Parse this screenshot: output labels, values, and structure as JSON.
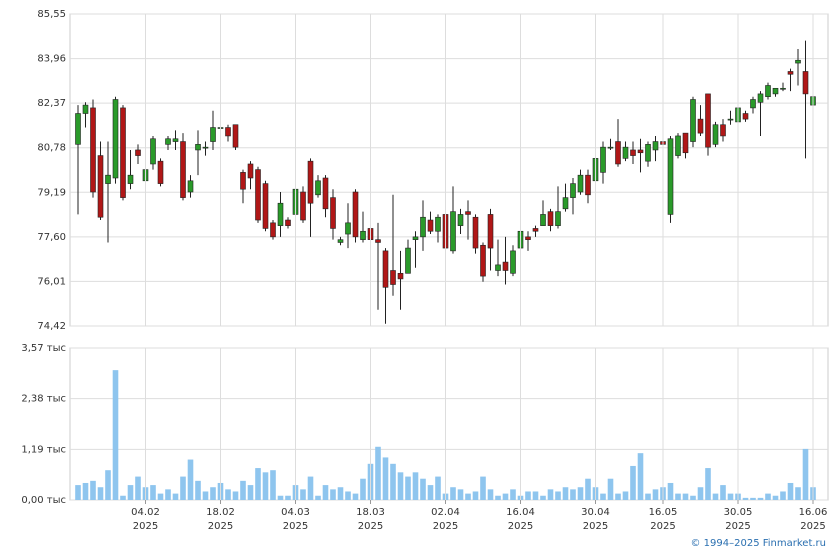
{
  "chart_data": [
    {
      "type": "candlestick",
      "up_color": "#2a9a2a",
      "down_color": "#b01717",
      "ylim": [
        74.42,
        85.55
      ],
      "yticks": [
        {
          "value": 74.42,
          "label": "74,42"
        },
        {
          "value": 76.01,
          "label": "76,01"
        },
        {
          "value": 77.6,
          "label": "77,60"
        },
        {
          "value": 79.19,
          "label": "79,19"
        },
        {
          "value": 80.78,
          "label": "80,78"
        },
        {
          "value": 82.37,
          "label": "82,37"
        },
        {
          "value": 83.96,
          "label": "83,96"
        },
        {
          "value": 85.55,
          "label": "85,55"
        }
      ],
      "grid": true,
      "open": [
        80.9,
        82.0,
        82.2,
        80.5,
        79.5,
        79.7,
        82.2,
        79.5,
        80.7,
        79.6,
        80.2,
        80.3,
        80.9,
        81.0,
        81.0,
        79.2,
        80.7,
        80.8,
        81.0,
        81.5,
        81.5,
        81.6,
        79.9,
        80.2,
        80.0,
        79.5,
        78.1,
        78.0,
        78.2,
        78.4,
        79.2,
        80.3,
        79.1,
        79.7,
        79.0,
        77.4,
        77.7,
        79.2,
        77.5,
        77.9,
        77.5,
        77.1,
        76.4,
        76.3,
        76.3,
        77.5,
        77.6,
        78.2,
        77.8,
        78.4,
        77.1,
        78.0,
        78.5,
        78.3,
        77.3,
        78.4,
        76.4,
        76.7,
        76.3,
        77.2,
        77.6,
        77.9,
        78.0,
        78.5,
        78.0,
        78.6,
        79.0,
        79.2,
        79.8,
        79.6,
        79.9,
        80.8,
        81.0,
        80.4,
        80.7,
        80.7,
        80.3,
        80.7,
        81.0,
        78.4,
        80.5,
        81.3,
        81.0,
        81.8,
        82.7,
        80.9,
        81.6,
        81.8,
        81.7,
        82.0,
        82.2,
        82.4,
        82.6,
        82.7,
        82.9,
        83.5,
        83.8,
        83.5,
        82.3
      ],
      "high": [
        82.3,
        82.4,
        82.5,
        81.0,
        81.0,
        82.6,
        82.3,
        80.7,
        80.9,
        80.2,
        81.2,
        80.4,
        81.2,
        81.4,
        81.3,
        79.8,
        81.4,
        81.0,
        82.1,
        82.3,
        81.6,
        81.6,
        80.0,
        80.3,
        80.1,
        79.6,
        78.2,
        79.2,
        78.3,
        79.3,
        79.4,
        80.4,
        79.8,
        79.8,
        79.3,
        77.6,
        78.8,
        79.3,
        78.5,
        78.2,
        78.1,
        77.2,
        79.1,
        77.1,
        77.5,
        77.8,
        78.9,
        78.5,
        78.4,
        78.6,
        79.4,
        78.6,
        78.9,
        78.4,
        77.4,
        78.6,
        77.5,
        77.6,
        77.3,
        77.8,
        77.8,
        78.0,
        78.9,
        78.6,
        79.4,
        79.5,
        79.7,
        80.0,
        80.0,
        80.6,
        81.0,
        81.1,
        81.8,
        81.0,
        81.0,
        81.1,
        81.0,
        81.2,
        81.2,
        81.2,
        81.3,
        81.3,
        82.6,
        82.3,
        82.7,
        81.7,
        81.8,
        82.1,
        82.6,
        82.1,
        82.6,
        82.8,
        83.1,
        82.9,
        83.1,
        83.6,
        84.3,
        84.6,
        82.7
      ],
      "low": [
        78.4,
        81.5,
        79.0,
        78.2,
        77.4,
        79.5,
        78.9,
        79.3,
        80.2,
        79.3,
        80.0,
        79.4,
        80.7,
        80.7,
        78.9,
        79.0,
        79.8,
        80.5,
        80.7,
        81.0,
        81.0,
        80.7,
        78.8,
        79.3,
        78.1,
        77.8,
        77.5,
        77.6,
        77.9,
        78.0,
        78.1,
        77.6,
        79.0,
        78.3,
        77.5,
        77.3,
        77.2,
        77.4,
        77.4,
        76.7,
        75.0,
        74.5,
        75.5,
        75.0,
        76.3,
        76.5,
        77.1,
        77.7,
        77.4,
        76.8,
        77.0,
        77.7,
        77.5,
        77.0,
        76.0,
        76.4,
        76.2,
        75.9,
        76.2,
        76.6,
        77.1,
        77.6,
        78.0,
        77.8,
        77.9,
        78.5,
        78.4,
        79.1,
        78.8,
        79.4,
        79.5,
        80.7,
        80.1,
        80.3,
        80.2,
        79.9,
        80.1,
        80.3,
        80.8,
        78.1,
        80.4,
        80.4,
        80.8,
        81.2,
        80.5,
        80.8,
        81.0,
        81.6,
        81.6,
        81.7,
        82.0,
        81.2,
        82.5,
        82.6,
        82.8,
        82.8,
        83.0,
        80.4,
        82.0
      ],
      "close": [
        82.0,
        82.3,
        79.2,
        78.3,
        79.8,
        82.5,
        79.0,
        79.8,
        80.5,
        80.0,
        81.1,
        79.5,
        81.1,
        81.1,
        79.0,
        79.6,
        80.9,
        80.8,
        81.5,
        81.5,
        81.2,
        80.8,
        79.3,
        79.7,
        78.2,
        77.9,
        77.6,
        78.8,
        78.0,
        79.3,
        78.2,
        78.8,
        79.6,
        78.6,
        77.9,
        77.5,
        78.1,
        77.6,
        77.8,
        77.5,
        77.4,
        75.8,
        75.9,
        76.1,
        77.2,
        77.6,
        78.3,
        77.8,
        78.3,
        77.2,
        78.5,
        78.4,
        78.4,
        77.2,
        76.2,
        77.2,
        76.6,
        76.4,
        77.1,
        77.8,
        77.5,
        77.8,
        78.4,
        78.0,
        78.5,
        79.0,
        79.5,
        79.8,
        79.1,
        80.4,
        80.8,
        80.8,
        80.2,
        80.8,
        80.5,
        80.6,
        80.9,
        81.0,
        80.9,
        81.1,
        81.2,
        80.6,
        82.5,
        81.3,
        80.8,
        81.6,
        81.2,
        81.8,
        82.2,
        81.8,
        82.5,
        82.7,
        83.0,
        82.9,
        82.9,
        83.4,
        83.9,
        82.7,
        82.6
      ]
    },
    {
      "type": "bar",
      "color": "#8ec5ee",
      "ylim": [
        0,
        3.57
      ],
      "yticks": [
        {
          "value": 0,
          "label": "0,00 тыс"
        },
        {
          "value": 1.19,
          "label": "1,19 тыс"
        },
        {
          "value": 2.38,
          "label": "2,38 тыс"
        },
        {
          "value": 3.57,
          "label": "3,57 тыс"
        }
      ],
      "grid": true,
      "categories": [
        null,
        null,
        null,
        null,
        null,
        null,
        null,
        null,
        null,
        "04.02\n2025",
        null,
        null,
        null,
        null,
        null,
        null,
        null,
        null,
        null,
        "18.02\n2025",
        null,
        null,
        null,
        null,
        null,
        null,
        null,
        null,
        null,
        "04.03\n2025",
        null,
        null,
        null,
        null,
        null,
        null,
        null,
        null,
        null,
        "18.03\n2025",
        null,
        null,
        null,
        null,
        null,
        null,
        null,
        null,
        null,
        "02.04\n2025",
        null,
        null,
        null,
        null,
        null,
        null,
        null,
        null,
        null,
        "16.04\n2025",
        null,
        null,
        null,
        null,
        null,
        null,
        null,
        null,
        null,
        "30.04\n2025",
        null,
        null,
        null,
        null,
        null,
        null,
        null,
        null,
        "16.05\n2025",
        null,
        null,
        null,
        null,
        null,
        null,
        null,
        null,
        null,
        "30.05\n2025",
        null,
        null,
        null,
        null,
        null,
        null,
        null,
        null,
        null,
        "16.06\n2025"
      ],
      "values": [
        0.35,
        0.4,
        0.45,
        0.3,
        0.7,
        3.05,
        0.1,
        0.35,
        0.55,
        0.3,
        0.35,
        0.15,
        0.25,
        0.15,
        0.55,
        0.95,
        0.45,
        0.2,
        0.3,
        0.4,
        0.25,
        0.2,
        0.45,
        0.35,
        0.75,
        0.65,
        0.7,
        0.1,
        0.1,
        0.35,
        0.25,
        0.55,
        0.1,
        0.35,
        0.25,
        0.3,
        0.2,
        0.15,
        0.5,
        0.85,
        1.25,
        1.0,
        0.85,
        0.65,
        0.55,
        0.65,
        0.5,
        0.35,
        0.55,
        0.15,
        0.3,
        0.25,
        0.15,
        0.2,
        0.55,
        0.25,
        0.1,
        0.15,
        0.25,
        0.1,
        0.2,
        0.2,
        0.1,
        0.25,
        0.2,
        0.3,
        0.25,
        0.3,
        0.5,
        0.3,
        0.15,
        0.5,
        0.15,
        0.2,
        0.8,
        1.1,
        0.15,
        0.25,
        0.3,
        0.4,
        0.15,
        0.15,
        0.1,
        0.3,
        0.75,
        0.15,
        0.35,
        0.15,
        0.15,
        0.05,
        0.05,
        0.05,
        0.15,
        0.1,
        0.2,
        0.4,
        0.3,
        1.2,
        0.3
      ]
    }
  ],
  "footer": "© 1994–2025 Finmarket.ru"
}
